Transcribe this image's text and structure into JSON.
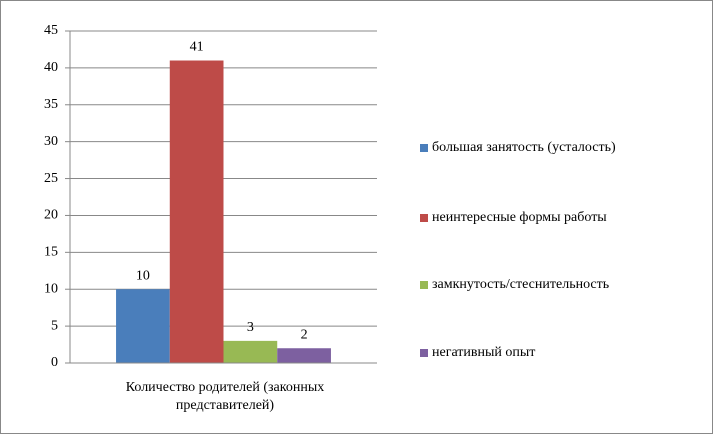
{
  "chart_data": {
    "type": "bar",
    "categories": [
      "Количество родителей (законных представителей)"
    ],
    "series": [
      {
        "name": "большая занятость (усталость)",
        "color": "#4a7ebb",
        "values": [
          10
        ]
      },
      {
        "name": "неинтересные формы работы",
        "color": "#be4b48",
        "values": [
          41
        ]
      },
      {
        "name": "замкнутость/стеснительность",
        "color": "#98b954",
        "values": [
          3
        ]
      },
      {
        "name": "негативный опыт",
        "color": "#7d60a0",
        "values": [
          2
        ]
      }
    ],
    "ylim": [
      0,
      45
    ],
    "yticks": [
      0,
      5,
      10,
      15,
      20,
      25,
      30,
      35,
      40,
      45
    ],
    "grid": true,
    "legend": "right",
    "data_labels": true
  }
}
